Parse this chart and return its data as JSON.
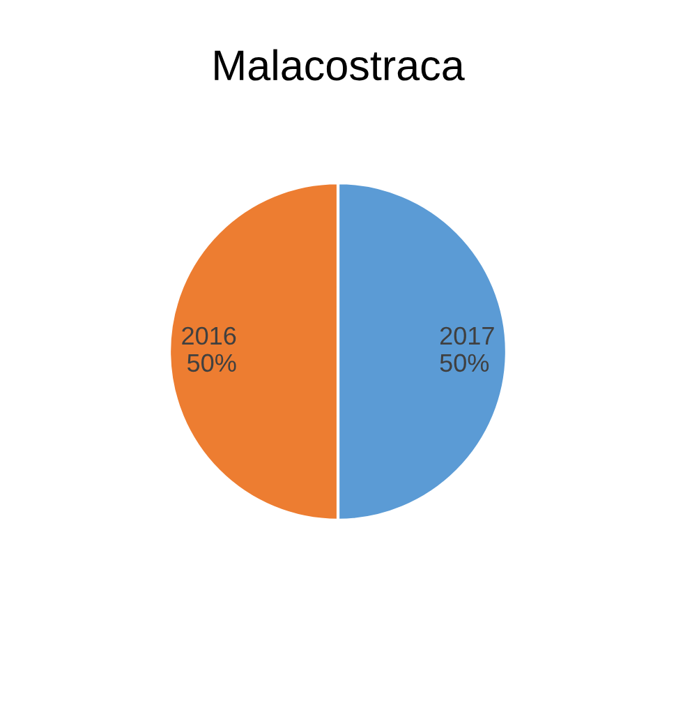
{
  "chart_data": {
    "type": "pie",
    "title": "Malacostraca",
    "categories": [
      "2017",
      "2016"
    ],
    "values": [
      50,
      50
    ],
    "value_labels": [
      "50%",
      "50%"
    ],
    "colors": [
      "#5b9bd5",
      "#ed7d31"
    ]
  }
}
